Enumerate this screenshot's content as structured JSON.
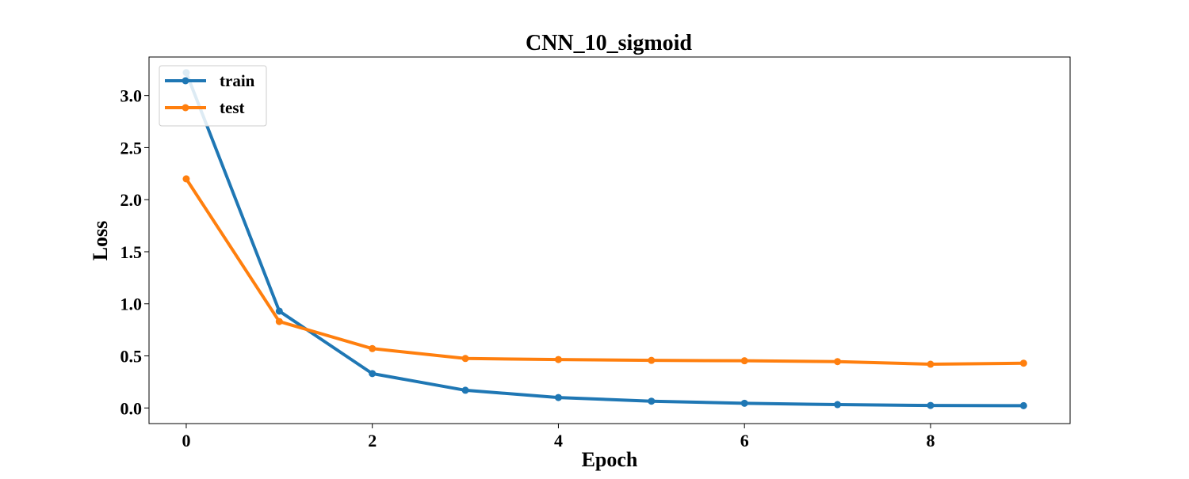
{
  "chart_data": {
    "type": "line",
    "title": "CNN_10_sigmoid",
    "xlabel": "Epoch",
    "ylabel": "Loss",
    "x": [
      0,
      1,
      2,
      3,
      4,
      5,
      6,
      7,
      8,
      9
    ],
    "xlim": [
      -0.4,
      9.5
    ],
    "ylim": [
      -0.15,
      3.37
    ],
    "xticks": [
      0,
      2,
      4,
      6,
      8
    ],
    "xtick_labels": [
      "0",
      "2",
      "4",
      "6",
      "8"
    ],
    "yticks": [
      0.0,
      0.5,
      1.0,
      1.5,
      2.0,
      2.5,
      3.0
    ],
    "ytick_labels": [
      "0.0",
      "0.5",
      "1.0",
      "1.5",
      "2.0",
      "2.5",
      "3.0"
    ],
    "grid": false,
    "legend_position": "upper-left",
    "series": [
      {
        "name": "train",
        "color": "#1f77b4",
        "marker": "circle",
        "values": [
          3.22,
          0.93,
          0.33,
          0.17,
          0.1,
          0.065,
          0.045,
          0.032,
          0.024,
          0.022
        ]
      },
      {
        "name": "test",
        "color": "#ff7f0e",
        "marker": "circle",
        "values": [
          2.2,
          0.83,
          0.57,
          0.475,
          0.465,
          0.457,
          0.453,
          0.445,
          0.42,
          0.43
        ]
      }
    ]
  }
}
